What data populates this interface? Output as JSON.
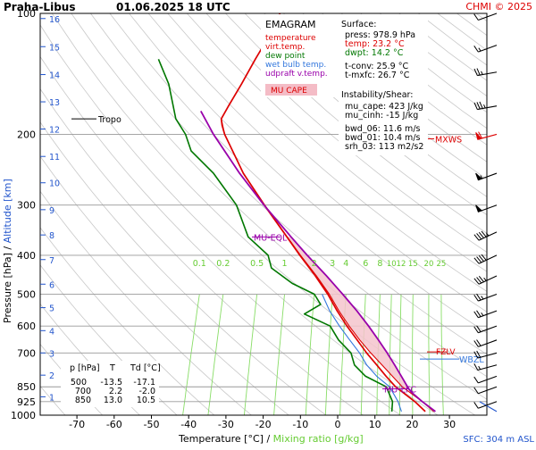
{
  "header": {
    "station": "Praha-Libus",
    "datetime": "01.06.2025 18 UTC",
    "credit": "CHMI © 2025"
  },
  "legend": {
    "title": "EMAGRAM",
    "items": [
      {
        "label": "temperature",
        "color": "#dd0000"
      },
      {
        "label": "virt.temp.",
        "color": "#dd0000"
      },
      {
        "label": "dew point",
        "color": "#007700"
      },
      {
        "label": "wet bulb temp.",
        "color": "#3377dd"
      },
      {
        "label": "udpraft v.temp.",
        "color": "#9900aa"
      }
    ],
    "cape_badge": "MU CAPE",
    "cape_badge_color": "#f4bcc6"
  },
  "surface": {
    "title": "Surface:",
    "press": "press: 978.9 hPa",
    "temp": "temp: 23.2 °C",
    "dwpt": "dwpt: 14.2 °C",
    "tconv": "t-conv: 25.9 °C",
    "tmxfc": "t-mxfc: 26.7 °C"
  },
  "instability": {
    "title": "Instability/Shear:",
    "mu_cape": "mu_cape: 423 J/kg",
    "mu_cinh": "mu_cinh: -15 J/kg",
    "bwd_06": "bwd_06: 11.6 m/s",
    "bwd_01": "bwd_01: 10.4 m/s",
    "srh_03": "srh_03: 113 m2/s2"
  },
  "level_table": {
    "headers": [
      "p [hPa]",
      "T",
      "Td [°C]"
    ],
    "rows": [
      [
        "500",
        "-13.5",
        "-17.1"
      ],
      [
        "700",
        "2.2",
        "-2.0"
      ],
      [
        "850",
        "13.0",
        "10.5"
      ]
    ]
  },
  "annotations": {
    "tropo": "Tropo",
    "mu_eql": "MU-EQL",
    "mu_lfc": "MU-LFC",
    "wbzl": "WBZL",
    "fzl": "FZLV",
    "mxws": "MXWS",
    "sfc": "SFC: 304 m ASL"
  },
  "axes": {
    "xlabel_temp": "Temperature [°C]",
    "xlabel_sep": " / ",
    "xlabel_mix": "Mixing ratio [g/kg]",
    "ylabel_pressure": "Pressure [hPa]",
    "ylabel_sep": " / ",
    "ylabel_alt": "Altitude [km]"
  },
  "colors": {
    "temperature": "#dd0000",
    "dewpoint": "#007700",
    "wetbulb": "#3377dd",
    "parcel": "#9900aa",
    "cape_fill": "#f4c4cc",
    "mixing_ratio": "#88dd66",
    "mixing_label": "#66cc33",
    "altitude": "#2255cc",
    "isobar": "#999999",
    "adiabat": "#c8c8c8",
    "wind": "#000000",
    "mxws": "#dd0000"
  },
  "chart_data": {
    "type": "line",
    "diagram": "emagram",
    "y_scale": "log",
    "ylim": [
      1000,
      100
    ],
    "xlim": [
      -80,
      40
    ],
    "x_ticks": [
      -70,
      -60,
      -50,
      -40,
      -30,
      -20,
      -10,
      0,
      10,
      20,
      30
    ],
    "isotherm_slope_deg_per_decade": 36,
    "pressure_ticks": [
      100,
      200,
      300,
      400,
      500,
      600,
      700,
      850,
      925,
      1000
    ],
    "altitude_ticks_km": [
      "1",
      "2",
      "3",
      "4",
      "5",
      "6",
      "7",
      "8",
      "9",
      "10",
      "11",
      "12",
      "13",
      "14",
      "15",
      "16"
    ],
    "altitude_tick_pressures": [
      900,
      795,
      700,
      616,
      540,
      472,
      410,
      356,
      308,
      264,
      227,
      194,
      166,
      142,
      121,
      103
    ],
    "mixing_ratio_labels": [
      "0.1",
      "0.2",
      "0.5",
      "1",
      "2",
      "3",
      "4",
      "6",
      "8",
      "10",
      "12",
      "15",
      "20",
      "25"
    ],
    "mixing_ratio_values": [
      0.1,
      0.2,
      0.5,
      1,
      2,
      3,
      4,
      6,
      8,
      10,
      12,
      15,
      20,
      25
    ],
    "series": [
      {
        "key": "temperature",
        "points": [
          [
            979,
            23.2
          ],
          [
            925,
            19.5
          ],
          [
            850,
            13.0
          ],
          [
            800,
            9.5
          ],
          [
            750,
            6.0
          ],
          [
            700,
            2.2
          ],
          [
            650,
            -1.5
          ],
          [
            600,
            -5.5
          ],
          [
            550,
            -9.5
          ],
          [
            500,
            -13.5
          ],
          [
            450,
            -18.5
          ],
          [
            400,
            -24.5
          ],
          [
            350,
            -31.0
          ],
          [
            300,
            -38.5
          ],
          [
            250,
            -47.0
          ],
          [
            200,
            -55.5
          ],
          [
            190,
            -57.0
          ],
          [
            183,
            -57.8
          ],
          [
            170,
            -57.0
          ],
          [
            150,
            -55.5
          ],
          [
            130,
            -54.0
          ],
          [
            115,
            -52.5
          ],
          [
            100,
            -51.5
          ]
        ]
      },
      {
        "key": "virtual_temperature",
        "points": [
          [
            979,
            25.5
          ],
          [
            925,
            21.5
          ],
          [
            850,
            14.8
          ],
          [
            800,
            11.2
          ],
          [
            750,
            7.4
          ],
          [
            700,
            3.3
          ],
          [
            650,
            -0.8
          ],
          [
            600,
            -4.9
          ],
          [
            550,
            -9.0
          ],
          [
            500,
            -13.1
          ],
          [
            450,
            -18.2
          ],
          [
            400,
            -24.3
          ],
          [
            350,
            -30.9
          ],
          [
            300,
            -38.4
          ],
          [
            250,
            -47.0
          ],
          [
            200,
            -55.5
          ],
          [
            183,
            -57.8
          ]
        ]
      },
      {
        "key": "dewpoint",
        "points": [
          [
            979,
            14.2
          ],
          [
            925,
            13.5
          ],
          [
            850,
            10.5
          ],
          [
            800,
            4.0
          ],
          [
            750,
            0.0
          ],
          [
            700,
            -2.0
          ],
          [
            650,
            -6.5
          ],
          [
            600,
            -10.0
          ],
          [
            560,
            -18.0
          ],
          [
            530,
            -14.5
          ],
          [
            500,
            -17.1
          ],
          [
            470,
            -24.0
          ],
          [
            430,
            -31.0
          ],
          [
            400,
            -33.0
          ],
          [
            360,
            -40.0
          ],
          [
            300,
            -46.0
          ],
          [
            250,
            -55.0
          ],
          [
            220,
            -63.0
          ],
          [
            200,
            -66.0
          ],
          [
            183,
            -70.0
          ],
          [
            150,
            -75.0
          ],
          [
            130,
            -80.0
          ]
        ]
      },
      {
        "key": "wet_bulb",
        "points": [
          [
            979,
            16.8
          ],
          [
            925,
            15.0
          ],
          [
            850,
            11.4
          ],
          [
            800,
            7.0
          ],
          [
            750,
            3.3
          ],
          [
            700,
            0.3
          ],
          [
            650,
            -3.5
          ],
          [
            600,
            -7.5
          ],
          [
            550,
            -11.5
          ],
          [
            500,
            -15.0
          ]
        ]
      },
      {
        "key": "parcel",
        "points": [
          [
            979,
            25.9
          ],
          [
            925,
            21.5
          ],
          [
            880,
            18.0
          ],
          [
            860,
            16.7
          ],
          [
            800,
            13.6
          ],
          [
            750,
            10.8
          ],
          [
            700,
            7.7
          ],
          [
            650,
            4.2
          ],
          [
            600,
            0.3
          ],
          [
            550,
            -4.2
          ],
          [
            500,
            -9.5
          ],
          [
            450,
            -15.5
          ],
          [
            400,
            -22.5
          ],
          [
            360,
            -28.5
          ],
          [
            300,
            -38.6
          ],
          [
            250,
            -48.0
          ],
          [
            200,
            -58.5
          ],
          [
            175,
            -64.0
          ]
        ]
      }
    ],
    "levels": {
      "tropopause_hPa": 183,
      "mu_eql_hPa": 360,
      "mu_lfc_hPa": 860,
      "wbzl_hPa": 725,
      "fzl_hPa": 710,
      "mxws_hPa": 200
    },
    "winds": [
      {
        "p": 979,
        "dir": 300,
        "spd": 2
      },
      {
        "p": 925,
        "dir": 250,
        "spd": 10
      },
      {
        "p": 850,
        "dir": 250,
        "spd": 10
      },
      {
        "p": 800,
        "dir": 250,
        "spd": 10
      },
      {
        "p": 750,
        "dir": 255,
        "spd": 15
      },
      {
        "p": 700,
        "dir": 255,
        "spd": 20
      },
      {
        "p": 650,
        "dir": 250,
        "spd": 20
      },
      {
        "p": 600,
        "dir": 250,
        "spd": 20
      },
      {
        "p": 550,
        "dir": 250,
        "spd": 25
      },
      {
        "p": 500,
        "dir": 250,
        "spd": 25
      },
      {
        "p": 450,
        "dir": 245,
        "spd": 35
      },
      {
        "p": 400,
        "dir": 245,
        "spd": 40
      },
      {
        "p": 350,
        "dir": 245,
        "spd": 45
      },
      {
        "p": 300,
        "dir": 250,
        "spd": 50
      },
      {
        "p": 250,
        "dir": 250,
        "spd": 55
      },
      {
        "p": 200,
        "dir": 255,
        "spd": 60
      },
      {
        "p": 170,
        "dir": 260,
        "spd": 35
      },
      {
        "p": 140,
        "dir": 260,
        "spd": 25
      },
      {
        "p": 120,
        "dir": 250,
        "spd": 15
      },
      {
        "p": 100,
        "dir": 250,
        "spd": 10
      }
    ]
  }
}
